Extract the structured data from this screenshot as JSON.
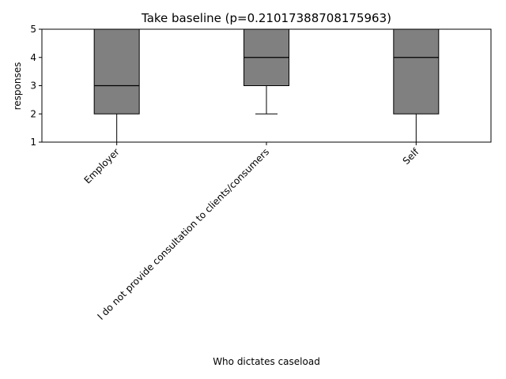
{
  "chart_data": {
    "type": "box",
    "title": "Take baseline (p=0.21017388708175963)",
    "xlabel": "Who dictates caseload",
    "ylabel": "responses",
    "ylim": [
      1,
      5
    ],
    "yticks": [
      1,
      2,
      3,
      4,
      5
    ],
    "grid": false,
    "categories": [
      "Employer",
      "I do not provide consultation to clients/consumers",
      "Self"
    ],
    "boxes": [
      {
        "category": "Employer",
        "whisker_low": 1,
        "q1": 2,
        "median": 3,
        "q3": 5,
        "whisker_high": 5
      },
      {
        "category": "I do not provide consultation to clients/consumers",
        "whisker_low": 2,
        "q1": 3,
        "median": 4,
        "q3": 5,
        "whisker_high": 5
      },
      {
        "category": "Self",
        "whisker_low": 1,
        "q1": 2,
        "median": 4,
        "q3": 5,
        "whisker_high": 5
      }
    ],
    "box_color": "#808080",
    "line_color": "#000000"
  }
}
